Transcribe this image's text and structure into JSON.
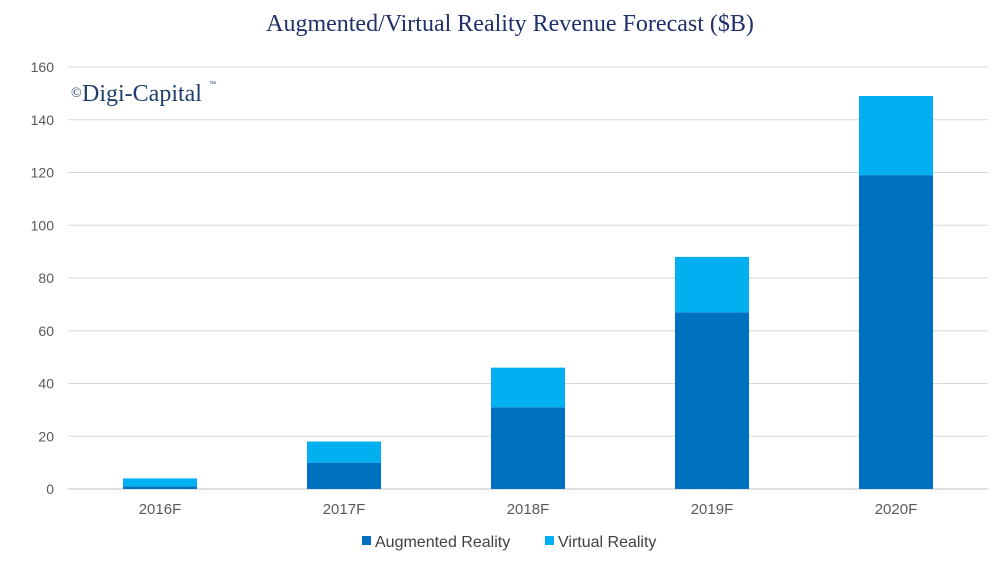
{
  "chart_data": {
    "type": "bar",
    "stacked": true,
    "title": "Augmented/Virtual Reality Revenue Forecast ($B)",
    "xlabel": "",
    "ylabel": "",
    "categories": [
      "2016F",
      "2017F",
      "2018F",
      "2019F",
      "2020F"
    ],
    "series": [
      {
        "name": "Augmented Reality",
        "color": "#0070c0",
        "values": [
          1,
          10,
          31,
          67,
          119
        ]
      },
      {
        "name": "Virtual Reality",
        "color": "#00b0f0",
        "values": [
          3,
          8,
          15,
          21,
          30
        ]
      }
    ],
    "ylim": [
      0,
      160
    ],
    "yticks": [
      0,
      20,
      40,
      60,
      80,
      100,
      120,
      140,
      160
    ],
    "grid": true,
    "legend": "bottom-center"
  },
  "watermark": {
    "copyright_symbol": "©",
    "text": "Digi-Capital",
    "tm": "™"
  }
}
